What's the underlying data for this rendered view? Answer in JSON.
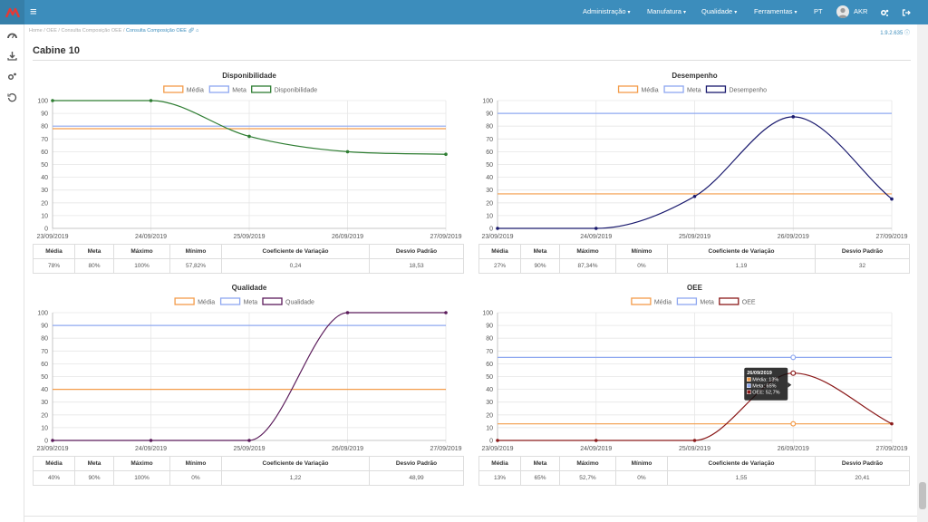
{
  "nav": {
    "menu": [
      "Administração",
      "Manufatura",
      "Qualidade",
      "Ferramentas"
    ],
    "lang": "PT",
    "user": "AKR"
  },
  "breadcrumb": {
    "home": "Home",
    "l1": "OEE",
    "l2": "Consulta Composição OEE",
    "current": "Consulta Composição OEE"
  },
  "version": "1.9.2.635",
  "page": {
    "title": "Cabine 10"
  },
  "colors": {
    "topbar": "#3c8dbc",
    "media": "#f39c4a",
    "meta": "#8fa8f0",
    "disponibilidade": "#2e7d32",
    "desempenho": "#1a1a6e",
    "qualidade": "#5a1a5a",
    "oee": "#8b1a1a"
  },
  "stat_headers": [
    "Média",
    "Meta",
    "Máximo",
    "Mínimo",
    "Coeficiente de Variação",
    "Desvio Padrão"
  ],
  "chart_data": [
    {
      "type": "line",
      "title": "Disponibilidade",
      "x": [
        "23/09/2019",
        "24/09/2019",
        "25/09/2019",
        "26/09/2019",
        "27/09/2019"
      ],
      "ylim": [
        0,
        100
      ],
      "yticks": [
        0,
        10,
        20,
        30,
        40,
        50,
        60,
        70,
        80,
        90,
        100
      ],
      "grid": true,
      "legend": "top-center",
      "series": [
        {
          "name": "Média",
          "values": [
            78,
            78,
            78,
            78,
            78
          ]
        },
        {
          "name": "Meta",
          "values": [
            80,
            80,
            80,
            80,
            80
          ]
        },
        {
          "name": "Disponibilidade",
          "values": [
            100,
            100,
            72,
            60,
            58
          ]
        }
      ],
      "stats": [
        "78%",
        "80%",
        "100%",
        "57,82%",
        "0,24",
        "18,53"
      ]
    },
    {
      "type": "line",
      "title": "Desempenho",
      "x": [
        "23/09/2019",
        "24/09/2019",
        "25/09/2019",
        "26/09/2019",
        "27/09/2019"
      ],
      "ylim": [
        0,
        100
      ],
      "yticks": [
        0,
        10,
        20,
        30,
        40,
        50,
        60,
        70,
        80,
        90,
        100
      ],
      "grid": true,
      "legend": "top-center",
      "series": [
        {
          "name": "Média",
          "values": [
            27,
            27,
            27,
            27,
            27
          ]
        },
        {
          "name": "Meta",
          "values": [
            90,
            90,
            90,
            90,
            90
          ]
        },
        {
          "name": "Desempenho",
          "values": [
            0,
            0,
            25,
            87.34,
            23
          ]
        }
      ],
      "stats": [
        "27%",
        "90%",
        "87,34%",
        "0%",
        "1,19",
        "32"
      ]
    },
    {
      "type": "line",
      "title": "Qualidade",
      "x": [
        "23/09/2019",
        "24/09/2019",
        "25/09/2019",
        "26/09/2019",
        "27/09/2019"
      ],
      "ylim": [
        0,
        100
      ],
      "yticks": [
        0,
        10,
        20,
        30,
        40,
        50,
        60,
        70,
        80,
        90,
        100
      ],
      "grid": true,
      "legend": "top-center",
      "series": [
        {
          "name": "Média",
          "values": [
            40,
            40,
            40,
            40,
            40
          ]
        },
        {
          "name": "Meta",
          "values": [
            90,
            90,
            90,
            90,
            90
          ]
        },
        {
          "name": "Qualidade",
          "values": [
            0,
            0,
            0,
            100,
            100
          ]
        }
      ],
      "stats": [
        "40%",
        "90%",
        "100%",
        "0%",
        "1,22",
        "48,99"
      ]
    },
    {
      "type": "line",
      "title": "OEE",
      "x": [
        "23/09/2019",
        "24/09/2019",
        "25/09/2019",
        "26/09/2019",
        "27/09/2019"
      ],
      "ylim": [
        0,
        100
      ],
      "yticks": [
        0,
        10,
        20,
        30,
        40,
        50,
        60,
        70,
        80,
        90,
        100
      ],
      "grid": true,
      "legend": "top-center",
      "series": [
        {
          "name": "Média",
          "values": [
            13,
            13,
            13,
            13,
            13
          ]
        },
        {
          "name": "Meta",
          "values": [
            65,
            65,
            65,
            65,
            65
          ]
        },
        {
          "name": "OEE",
          "values": [
            0,
            0,
            0,
            52.7,
            13
          ]
        }
      ],
      "tooltip": {
        "title": "26/09/2019",
        "lines": [
          "Média: 13%",
          "Meta: 65%",
          "OEE: 52,7%"
        ],
        "index": 3
      },
      "stats": [
        "13%",
        "65%",
        "52,7%",
        "0%",
        "1,55",
        "20,41"
      ]
    }
  ]
}
